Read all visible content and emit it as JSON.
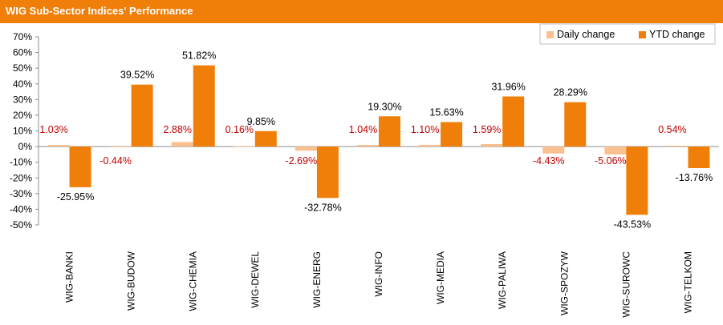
{
  "header": {
    "title": "WIG Sub-Sector Indices' Performance"
  },
  "colors": {
    "header_bg": "#f07f09",
    "daily": "#fac090",
    "ytd": "#f07f09",
    "daily_label": "#c00000",
    "ytd_label": "#000000"
  },
  "chart_data": {
    "type": "bar",
    "title": "WIG Sub-Sector Indices' Performance",
    "categories": [
      "WIG-BANKI",
      "WIG-BUDOW",
      "WIG-CHEMIA",
      "WIG-DEWEL",
      "WIG-ENERG",
      "WIG-INFO",
      "WIG-MEDIA",
      "WIG-PALIWA",
      "WIG-SPOZYW",
      "WIG-SUROWC",
      "WIG-TELKOM"
    ],
    "series": [
      {
        "name": "Daily change",
        "values": [
          1.03,
          -0.44,
          2.88,
          0.16,
          -2.69,
          1.04,
          1.1,
          1.59,
          -4.43,
          -5.06,
          0.54
        ],
        "labels": [
          "1.03%",
          "-0.44%",
          "2.88%",
          "0.16%",
          "-2.69%",
          "1.04%",
          "1.10%",
          "1.59%",
          "-4.43%",
          "-5.06%",
          "0.54%"
        ]
      },
      {
        "name": "YTD change",
        "values": [
          -25.95,
          39.52,
          51.82,
          9.85,
          -32.78,
          19.3,
          15.63,
          31.96,
          28.29,
          -43.53,
          -13.76
        ],
        "labels": [
          "-25.95%",
          "39.52%",
          "51.82%",
          "9.85%",
          "-32.78%",
          "19.30%",
          "15.63%",
          "31.96%",
          "28.29%",
          "-43.53%",
          "-13.76%"
        ]
      }
    ],
    "ylim": [
      -50,
      70
    ],
    "yticks": [
      "70%",
      "60%",
      "50%",
      "40%",
      "30%",
      "20%",
      "10%",
      "0%",
      "-10%",
      "-20%",
      "-30%",
      "-40%",
      "-50%"
    ],
    "grid": false,
    "legend": "top-right"
  }
}
